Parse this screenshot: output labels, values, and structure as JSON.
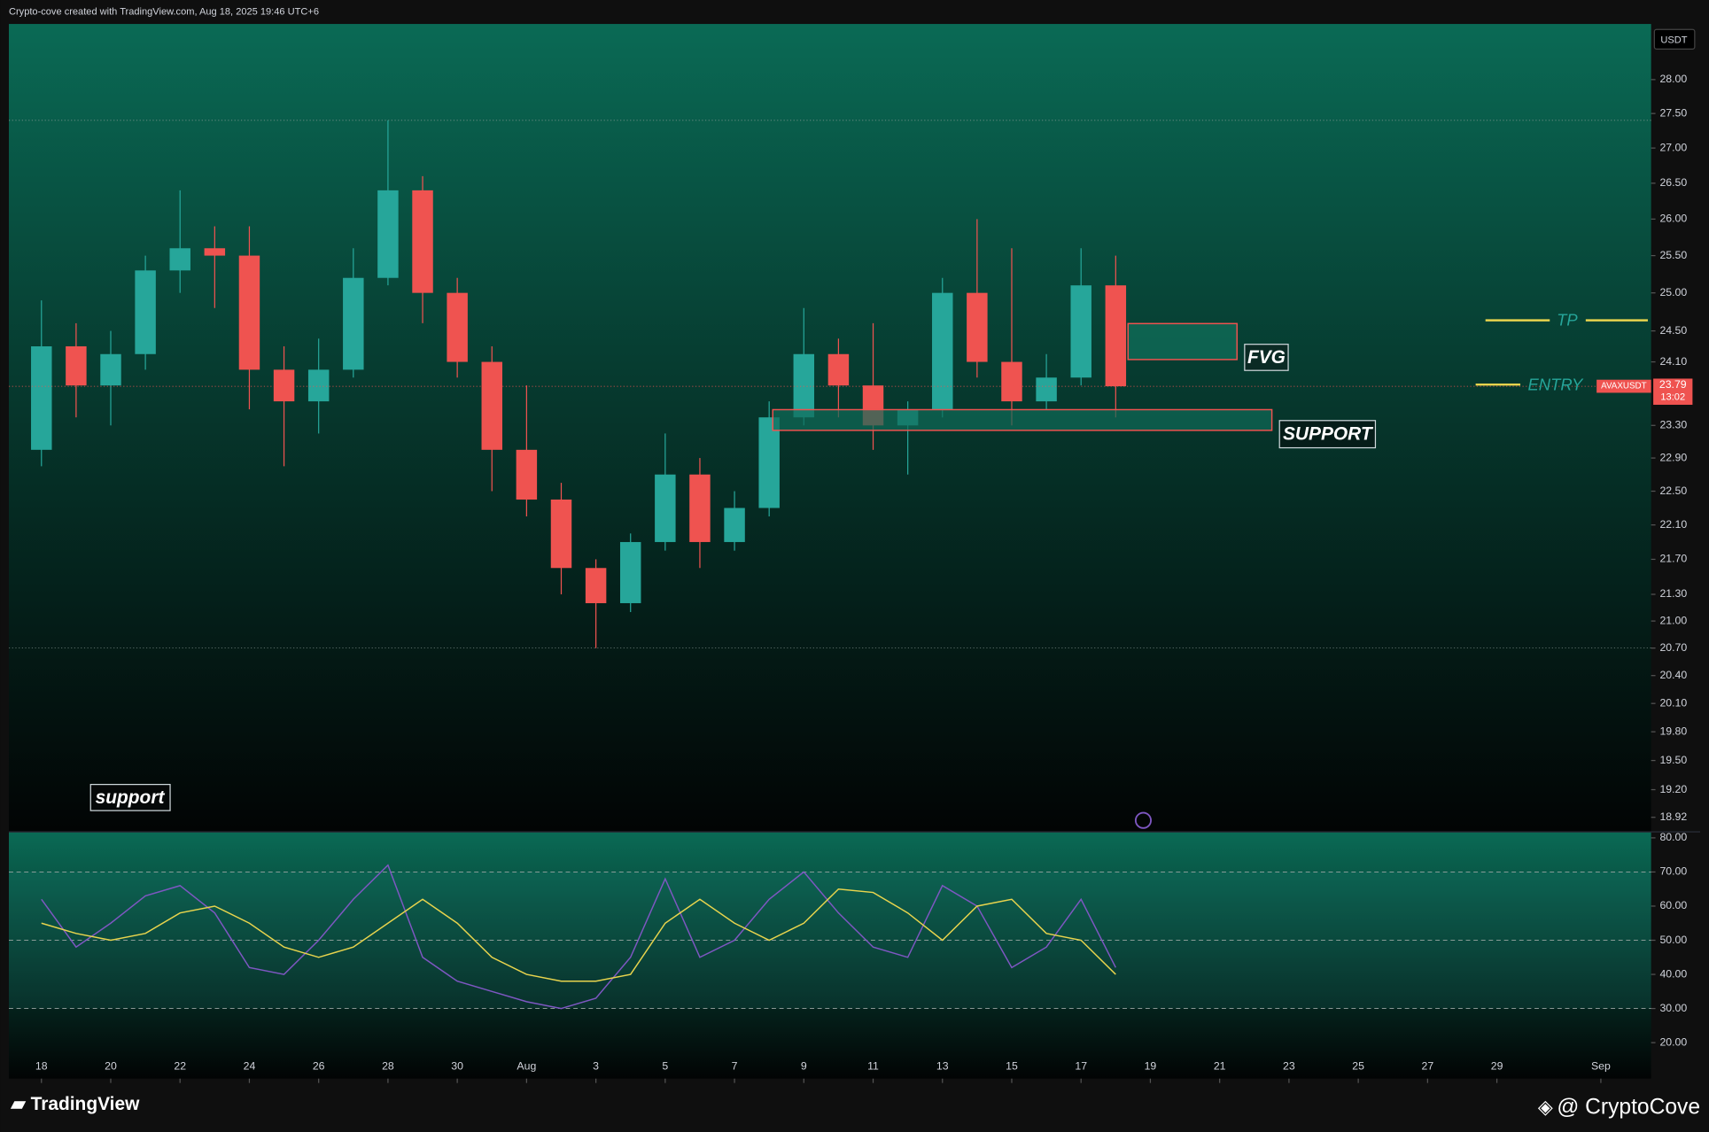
{
  "header": "Crypto-cove created with TradingView.com, Aug 18, 2025 19:46 UTC+6",
  "footer": {
    "brand": "TradingView",
    "author": "@ CryptoCove"
  },
  "chart_data": [
    {
      "type": "candlestick",
      "symbol": "AVAXUSDT",
      "currency": "USDT",
      "last_price": 23.79,
      "countdown": "13:02",
      "up_color": "#26a69a",
      "down_color": "#ef5350",
      "log_scale": true,
      "x": [
        18,
        19,
        20,
        21,
        22,
        23,
        24,
        25,
        26,
        27,
        28,
        29,
        30,
        31,
        32,
        33,
        34,
        35,
        36,
        37,
        38,
        39,
        40,
        41,
        42,
        43,
        44,
        45,
        46,
        47,
        48,
        49
      ],
      "open": [
        23.0,
        24.3,
        23.8,
        24.2,
        25.3,
        25.6,
        25.5,
        24.0,
        23.6,
        24.0,
        25.2,
        26.4,
        25.0,
        24.1,
        23.0,
        22.4,
        21.6,
        21.2,
        21.9,
        22.7,
        21.9,
        22.3,
        23.4,
        24.2,
        23.8,
        23.3,
        23.5,
        25.0,
        24.1,
        23.6,
        23.9,
        25.1
      ],
      "high": [
        24.9,
        24.6,
        24.5,
        25.5,
        26.4,
        25.9,
        25.9,
        24.3,
        24.4,
        25.6,
        27.4,
        26.6,
        25.2,
        24.3,
        23.8,
        22.6,
        21.7,
        22.0,
        23.2,
        22.9,
        22.5,
        23.6,
        24.8,
        24.4,
        24.6,
        23.6,
        25.2,
        26.0,
        25.6,
        24.2,
        25.6,
        25.5
      ],
      "low": [
        22.8,
        23.4,
        23.3,
        24.0,
        25.0,
        24.8,
        23.5,
        22.8,
        23.2,
        23.9,
        25.1,
        24.6,
        23.9,
        22.5,
        22.2,
        21.3,
        20.7,
        21.1,
        21.8,
        21.6,
        21.8,
        22.2,
        23.3,
        23.4,
        23.0,
        22.7,
        23.4,
        23.9,
        23.3,
        23.5,
        23.8,
        23.4
      ],
      "close": [
        24.3,
        23.8,
        24.2,
        25.3,
        25.6,
        25.5,
        24.0,
        23.6,
        24.0,
        25.2,
        26.4,
        25.0,
        24.1,
        23.0,
        22.4,
        21.6,
        21.2,
        21.9,
        22.7,
        21.9,
        22.3,
        23.4,
        24.2,
        23.8,
        23.3,
        23.5,
        25.0,
        24.1,
        23.6,
        23.9,
        25.1,
        23.79
      ],
      "xlim": [
        17.06,
        64.45
      ],
      "xticks": [
        {
          "value": 18,
          "label": "18"
        },
        {
          "value": 20,
          "label": "20"
        },
        {
          "value": 22,
          "label": "22"
        },
        {
          "value": 24,
          "label": "24"
        },
        {
          "value": 26,
          "label": "26"
        },
        {
          "value": 28,
          "label": "28"
        },
        {
          "value": 30,
          "label": "30"
        },
        {
          "value": 32,
          "label": "Aug"
        },
        {
          "value": 34,
          "label": "3"
        },
        {
          "value": 36,
          "label": "5"
        },
        {
          "value": 38,
          "label": "7"
        },
        {
          "value": 40,
          "label": "9"
        },
        {
          "value": 42,
          "label": "11"
        },
        {
          "value": 44,
          "label": "13"
        },
        {
          "value": 46,
          "label": "15"
        },
        {
          "value": 48,
          "label": "17"
        },
        {
          "value": 50,
          "label": "19"
        },
        {
          "value": 52,
          "label": "21"
        },
        {
          "value": 54,
          "label": "23"
        },
        {
          "value": 56,
          "label": "25"
        },
        {
          "value": 58,
          "label": "27"
        },
        {
          "value": 60,
          "label": "29"
        },
        {
          "value": 63,
          "label": "Sep"
        }
      ],
      "ylim": [
        18.78,
        28.84
      ],
      "yticks": [
        {
          "value": 28,
          "label": "28.00"
        },
        {
          "value": 27.5,
          "label": "27.50"
        },
        {
          "value": 27,
          "label": "27.00"
        },
        {
          "value": 26.5,
          "label": "26.50"
        },
        {
          "value": 26,
          "label": "26.00"
        },
        {
          "value": 25.5,
          "label": "25.50"
        },
        {
          "value": 25,
          "label": "25.00"
        },
        {
          "value": 24.5,
          "label": "24.50"
        },
        {
          "value": 24.1,
          "label": "24.10"
        },
        {
          "value": 23.3,
          "label": "23.30"
        },
        {
          "value": 22.9,
          "label": "22.90"
        },
        {
          "value": 22.5,
          "label": "22.50"
        },
        {
          "value": 22.1,
          "label": "22.10"
        },
        {
          "value": 21.7,
          "label": "21.70"
        },
        {
          "value": 21.3,
          "label": "21.30"
        },
        {
          "value": 21,
          "label": "21.00"
        },
        {
          "value": 20.7,
          "label": "20.70"
        },
        {
          "value": 20.4,
          "label": "20.40"
        },
        {
          "value": 20.1,
          "label": "20.10"
        },
        {
          "value": 19.8,
          "label": "19.80"
        },
        {
          "value": 19.5,
          "label": "19.50"
        },
        {
          "value": 19.2,
          "label": "19.20"
        },
        {
          "value": 18.92,
          "label": "18.92"
        }
      ],
      "annotations": {
        "fvg": "FVG",
        "support_zone": "SUPPORT",
        "support": "support",
        "tp": "TP",
        "entry": "ENTRY"
      }
    },
    {
      "type": "line",
      "x": [
        18,
        19,
        20,
        21,
        22,
        23,
        24,
        25,
        26,
        27,
        28,
        29,
        30,
        31,
        32,
        33,
        34,
        35,
        36,
        37,
        38,
        39,
        40,
        41,
        42,
        43,
        44,
        45,
        46,
        47,
        48,
        49
      ],
      "series": [
        {
          "color": "#7e57c2",
          "values": [
            62,
            48,
            55,
            63,
            66,
            58,
            42,
            40,
            50,
            62,
            72,
            45,
            38,
            35,
            32,
            30,
            33,
            45,
            68,
            45,
            50,
            62,
            70,
            58,
            48,
            45,
            66,
            60,
            42,
            48,
            62,
            42
          ]
        },
        {
          "color": "#e8d44d",
          "values": [
            55,
            52,
            50,
            52,
            58,
            60,
            55,
            48,
            45,
            48,
            55,
            62,
            55,
            45,
            40,
            38,
            38,
            40,
            55,
            62,
            55,
            50,
            55,
            65,
            64,
            58,
            50,
            60,
            62,
            52,
            50,
            40
          ]
        }
      ],
      "levels": [
        30,
        50,
        70
      ],
      "ylim": [
        9.46,
        81.6
      ],
      "yticks": [
        {
          "value": 80,
          "label": "80.00"
        },
        {
          "value": 70,
          "label": "70.00"
        },
        {
          "value": 60,
          "label": "60.00"
        },
        {
          "value": 50,
          "label": "50.00"
        },
        {
          "value": 40,
          "label": "40.00"
        },
        {
          "value": 30,
          "label": "30.00"
        },
        {
          "value": 20,
          "label": "20.00"
        }
      ]
    }
  ]
}
